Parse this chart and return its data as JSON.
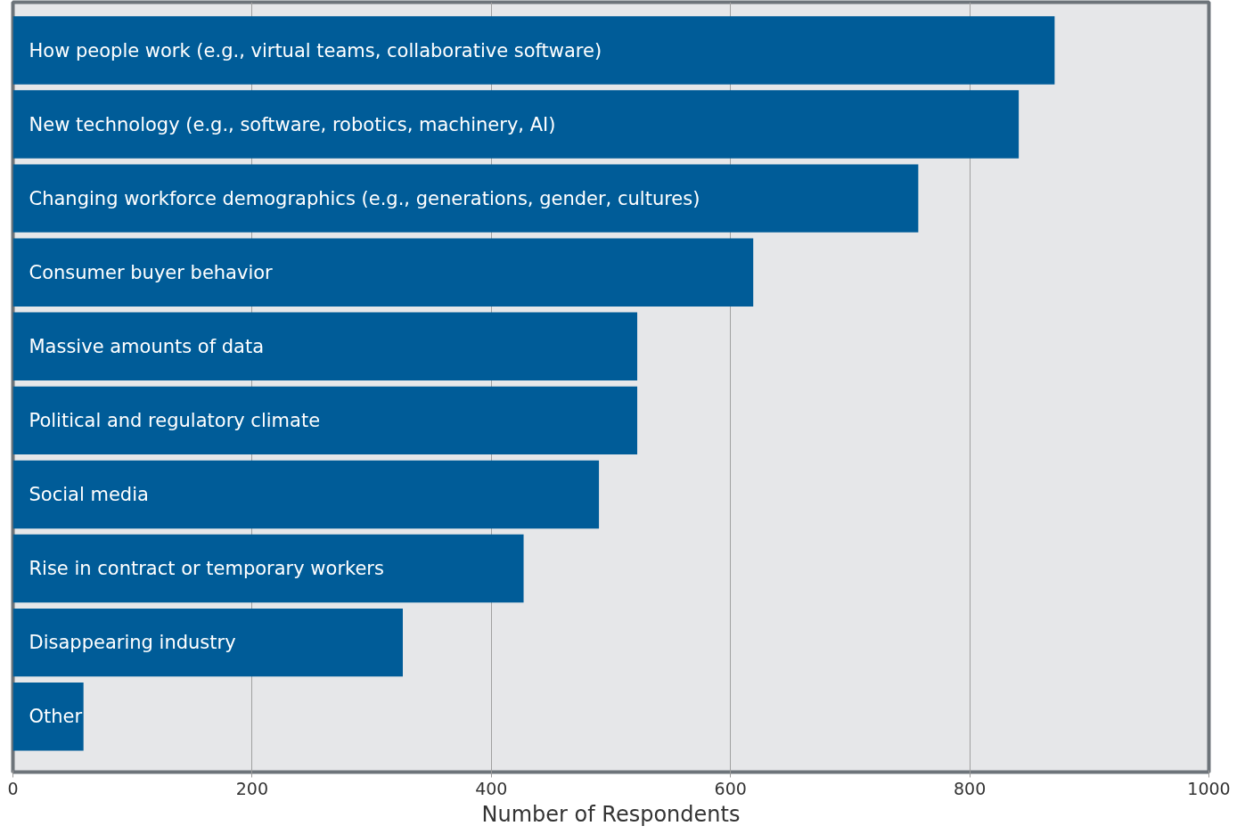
{
  "chart_data": {
    "type": "bar",
    "orientation": "horizontal",
    "xlabel": "Number of Respondents",
    "categories": [
      "How people work (e.g., virtual teams, collaborative software)",
      "New technology (e.g., software, robotics, machinery, AI)",
      "Changing workforce demographics (e.g., generations, gender, cultures)",
      "Consumer buyer behavior",
      "Massive amounts of data",
      "Political and regulatory climate",
      "Social media",
      "Rise in contract or temporary workers",
      "Disappearing industry",
      "Other"
    ],
    "values": [
      871,
      841,
      757,
      619,
      522,
      522,
      490,
      427,
      326,
      59
    ],
    "color": "#005c98",
    "xlim": [
      0,
      1000
    ],
    "xticks": [
      0,
      200,
      400,
      600,
      800,
      1000
    ],
    "grid": "x"
  }
}
